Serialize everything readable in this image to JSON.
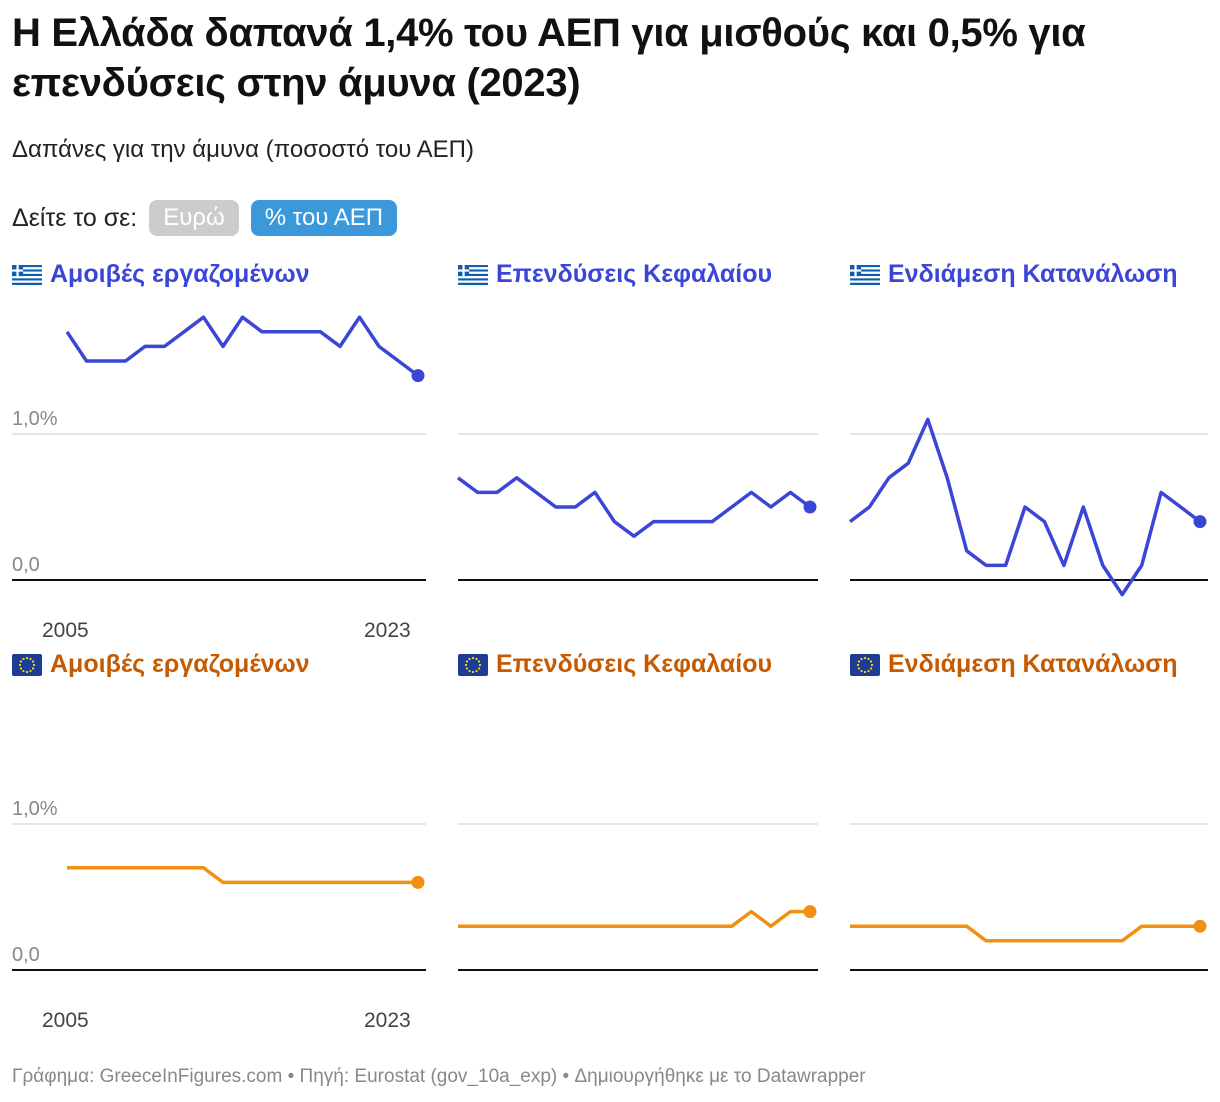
{
  "title": "Η Ελλάδα δαπανά 1,4% του ΑΕΠ για μισθούς και 0,5% για επενδύσεις στην άμυνα (2023)",
  "subtitle": "Δαπάνες για την άμυνα (ποσοστό του ΑΕΠ)",
  "toggle": {
    "label": "Δείτε το σε:",
    "options": [
      "Ευρώ",
      "% του ΑΕΠ"
    ],
    "selected": "% του ΑΕΠ"
  },
  "footer": "Γράφημα: GreeceInFigures.com • Πηγή: Eurostat (gov_10a_exp) • Δημιουργήθηκε με το Datawrapper",
  "colors": {
    "greece": "#3b46d6",
    "eu": "#f29111",
    "eu_title": "#c55a00",
    "grid": "#dddddd",
    "baseline": "#111111"
  },
  "icons": {
    "greece": "greek-flag-icon",
    "eu": "eu-flag-icon"
  },
  "chart_data": [
    {
      "type": "line",
      "region": "greece",
      "title": "Αμοιβές εργαζομένων",
      "x": [
        2005,
        2006,
        2007,
        2008,
        2009,
        2010,
        2011,
        2012,
        2013,
        2014,
        2015,
        2016,
        2017,
        2018,
        2019,
        2020,
        2021,
        2022,
        2023
      ],
      "values": [
        1.7,
        1.5,
        1.5,
        1.5,
        1.6,
        1.6,
        1.7,
        1.8,
        1.6,
        1.8,
        1.7,
        1.7,
        1.7,
        1.7,
        1.6,
        1.8,
        1.6,
        1.5,
        1.4
      ],
      "ylim": [
        0,
        1.4
      ],
      "ytick_labels": [
        "0,0",
        "1,0%"
      ],
      "yticks": [
        0,
        1.0
      ],
      "xtick_labels": [
        "2005",
        "2023"
      ]
    },
    {
      "type": "line",
      "region": "greece",
      "title": "Επενδύσεις Κεφαλαίου",
      "x": [
        2005,
        2006,
        2007,
        2008,
        2009,
        2010,
        2011,
        2012,
        2013,
        2014,
        2015,
        2016,
        2017,
        2018,
        2019,
        2020,
        2021,
        2022,
        2023
      ],
      "values": [
        0.7,
        0.6,
        0.6,
        0.7,
        0.6,
        0.5,
        0.5,
        0.6,
        0.4,
        0.3,
        0.4,
        0.4,
        0.4,
        0.4,
        0.5,
        0.6,
        0.5,
        0.6,
        0.5
      ],
      "ylim": [
        0,
        1.4
      ],
      "yticks": [
        0,
        1.0
      ]
    },
    {
      "type": "line",
      "region": "greece",
      "title": "Ενδιάμεση Κατανάλωση",
      "x": [
        2005,
        2006,
        2007,
        2008,
        2009,
        2010,
        2011,
        2012,
        2013,
        2014,
        2015,
        2016,
        2017,
        2018,
        2019,
        2020,
        2021,
        2022,
        2023
      ],
      "values": [
        0.4,
        0.5,
        0.7,
        0.8,
        1.1,
        0.7,
        0.2,
        0.1,
        0.1,
        0.5,
        0.4,
        0.1,
        0.5,
        0.1,
        -0.1,
        0.1,
        0.6,
        0.5,
        0.4
      ],
      "ylim": [
        0,
        1.4
      ],
      "yticks": [
        0,
        1.0
      ]
    },
    {
      "type": "line",
      "region": "eu",
      "title": "Αμοιβές εργαζομένων",
      "x": [
        2005,
        2006,
        2007,
        2008,
        2009,
        2010,
        2011,
        2012,
        2013,
        2014,
        2015,
        2016,
        2017,
        2018,
        2019,
        2020,
        2021,
        2022,
        2023
      ],
      "values": [
        0.7,
        0.7,
        0.7,
        0.7,
        0.7,
        0.7,
        0.7,
        0.7,
        0.6,
        0.6,
        0.6,
        0.6,
        0.6,
        0.6,
        0.6,
        0.6,
        0.6,
        0.6,
        0.6
      ],
      "ylim": [
        0,
        1.4
      ],
      "ytick_labels": [
        "0,0",
        "1,0%"
      ],
      "yticks": [
        0,
        1.0
      ],
      "xtick_labels": [
        "2005",
        "2023"
      ]
    },
    {
      "type": "line",
      "region": "eu",
      "title": "Επενδύσεις Κεφαλαίου",
      "x": [
        2005,
        2006,
        2007,
        2008,
        2009,
        2010,
        2011,
        2012,
        2013,
        2014,
        2015,
        2016,
        2017,
        2018,
        2019,
        2020,
        2021,
        2022,
        2023
      ],
      "values": [
        0.3,
        0.3,
        0.3,
        0.3,
        0.3,
        0.3,
        0.3,
        0.3,
        0.3,
        0.3,
        0.3,
        0.3,
        0.3,
        0.3,
        0.3,
        0.4,
        0.3,
        0.4,
        0.4
      ],
      "ylim": [
        0,
        1.4
      ],
      "yticks": [
        0,
        1.0
      ]
    },
    {
      "type": "line",
      "region": "eu",
      "title": "Ενδιάμεση Κατανάλωση",
      "x": [
        2005,
        2006,
        2007,
        2008,
        2009,
        2010,
        2011,
        2012,
        2013,
        2014,
        2015,
        2016,
        2017,
        2018,
        2019,
        2020,
        2021,
        2022,
        2023
      ],
      "values": [
        0.3,
        0.3,
        0.3,
        0.3,
        0.3,
        0.3,
        0.3,
        0.2,
        0.2,
        0.2,
        0.2,
        0.2,
        0.2,
        0.2,
        0.2,
        0.3,
        0.3,
        0.3,
        0.3
      ],
      "ylim": [
        0,
        1.4
      ],
      "yticks": [
        0,
        1.0
      ]
    }
  ]
}
